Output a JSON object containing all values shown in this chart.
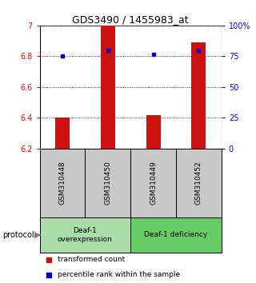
{
  "title": "GDS3490 / 1455983_at",
  "samples": [
    "GSM310448",
    "GSM310450",
    "GSM310449",
    "GSM310452"
  ],
  "bar_base": 6.2,
  "bar_tops": [
    6.4,
    7.0,
    6.42,
    6.89
  ],
  "percentile_values": [
    6.8,
    6.84,
    6.81,
    6.84
  ],
  "ylim": [
    6.2,
    7.0
  ],
  "yticks_left": [
    6.2,
    6.4,
    6.6,
    6.8,
    7.0
  ],
  "yticks_left_labels": [
    "6.2",
    "6.4",
    "6.6",
    "6.8",
    "7"
  ],
  "right_tick_pcts": [
    0,
    25,
    50,
    75,
    100
  ],
  "right_tick_labels": [
    "0",
    "25",
    "50",
    "75",
    "100%"
  ],
  "bar_color": "#cc1111",
  "dot_color": "#0000cc",
  "group1_label": "Deaf-1\noverexpression",
  "group2_label": "Deaf-1 deficiency",
  "group1_color": "#aaddaa",
  "group2_color": "#66cc66",
  "group_bg_color": "#c8c8c8",
  "protocol_label": "protocol",
  "legend_bar_label": "transformed count",
  "legend_dot_label": "percentile rank within the sample",
  "title_fontsize": 9,
  "tick_fontsize": 7,
  "label_fontsize": 6.5,
  "legend_fontsize": 6.5,
  "bar_width": 0.32
}
